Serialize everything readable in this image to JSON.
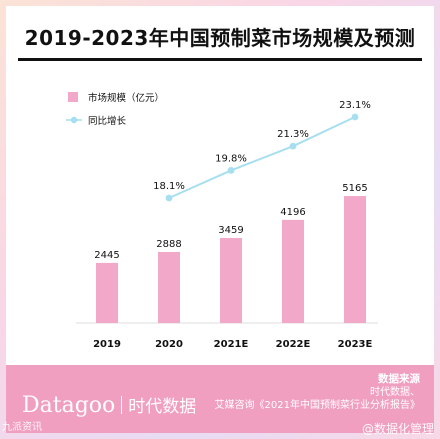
{
  "title": "2019-2023年中国预制菜市场规模及预测",
  "legend": {
    "bar_label": "市场规模（亿元）",
    "line_label": "同比增长"
  },
  "colors": {
    "bar": "#f2a8c8",
    "line": "#a8dff0",
    "text": "#111111"
  },
  "chart_data": {
    "type": "bar",
    "title": "2019-2023年中国预制菜市场规模及预测",
    "categories": [
      "2019",
      "2020",
      "2021E",
      "2022E",
      "2023E"
    ],
    "series": [
      {
        "name": "市场规模（亿元）",
        "type": "bar",
        "values": [
          2445,
          2888,
          3459,
          4196,
          5165
        ]
      },
      {
        "name": "同比增长",
        "type": "line",
        "x": [
          "2020",
          "2021E",
          "2022E",
          "2023E"
        ],
        "values": [
          18.1,
          19.8,
          21.3,
          23.1
        ],
        "labels": [
          "18.1%",
          "19.8%",
          "21.3%",
          "23.1%"
        ]
      }
    ],
    "legend": "top-left",
    "grid": false
  },
  "footer": {
    "logo_latin": "Datagoo",
    "logo_cn": "时代数据",
    "source_heading": "数据来源",
    "source_line1": "时代数据、",
    "source_line2": "艾媒咨询《2021年中国预制菜行业分析报告》"
  },
  "watermarks": {
    "left": "九派资讯",
    "right": "@数据化管理"
  }
}
